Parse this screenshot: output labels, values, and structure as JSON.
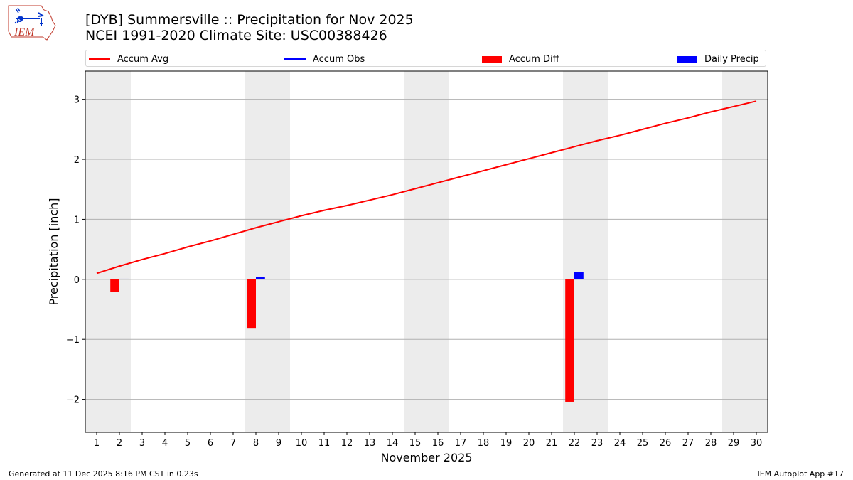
{
  "header": {
    "title_line1": "[DYB] Summersville :: Precipitation for Nov 2025",
    "title_line2": "NCEI 1991-2020 Climate Site: USC00388426",
    "logo_text": "IEM"
  },
  "legend": [
    {
      "label": "Accum Avg",
      "type": "line",
      "color": "#ff0000"
    },
    {
      "label": "Accum Obs",
      "type": "line",
      "color": "#0000ff"
    },
    {
      "label": "Accum Diff",
      "type": "bar",
      "color": "#ff0000"
    },
    {
      "label": "Daily Precip",
      "type": "bar",
      "color": "#0000ff"
    }
  ],
  "footer": {
    "generated": "Generated at 11 Dec 2025 8:16 PM CST in 0.23s",
    "app": "IEM Autoplot App #17"
  },
  "colors": {
    "avg": "#ff0000",
    "obs": "#0000ff",
    "weekend": "#ececec",
    "grid": "#b0b0b0"
  },
  "chart_data": {
    "type": "bar",
    "title": "[DYB] Summersville :: Precipitation for Nov 2025",
    "subtitle": "NCEI 1991-2020 Climate Site: USC00388426",
    "xlabel": "November 2025",
    "ylabel": "Precipitation [inch]",
    "xlim": [
      0.5,
      30.5
    ],
    "ylim": [
      -2.55,
      3.47
    ],
    "yticks": [
      -2,
      -1,
      0,
      1,
      2,
      3
    ],
    "ytick_labels": [
      "−2",
      "−1",
      "0",
      "1",
      "2",
      "3"
    ],
    "grid": "y",
    "legend_position": "top",
    "x": [
      1,
      2,
      3,
      4,
      5,
      6,
      7,
      8,
      9,
      10,
      11,
      12,
      13,
      14,
      15,
      16,
      17,
      18,
      19,
      20,
      21,
      22,
      23,
      24,
      25,
      26,
      27,
      28,
      29,
      30
    ],
    "weekend_spans": [
      [
        1,
        2
      ],
      [
        8,
        9
      ],
      [
        15,
        16
      ],
      [
        22,
        23
      ],
      [
        29,
        30
      ]
    ],
    "series": [
      {
        "name": "Accum Avg",
        "type": "line",
        "values": [
          0.1,
          0.22,
          0.33,
          0.43,
          0.54,
          0.64,
          0.75,
          0.86,
          0.96,
          1.06,
          1.15,
          1.23,
          1.32,
          1.41,
          1.51,
          1.61,
          1.71,
          1.81,
          1.91,
          2.01,
          2.11,
          2.21,
          2.31,
          2.4,
          2.5,
          2.6,
          2.69,
          2.79,
          2.88,
          2.97
        ]
      },
      {
        "name": "Accum Obs",
        "type": "line",
        "values": []
      },
      {
        "name": "Accum Diff",
        "type": "bar",
        "points": [
          {
            "x": 2,
            "y": -0.21
          },
          {
            "x": 8,
            "y": -0.81
          },
          {
            "x": 22,
            "y": -2.04
          }
        ]
      },
      {
        "name": "Daily Precip",
        "type": "bar",
        "points": [
          {
            "x": 2,
            "y": 0.01
          },
          {
            "x": 8,
            "y": 0.04
          },
          {
            "x": 22,
            "y": 0.12
          }
        ]
      }
    ]
  }
}
